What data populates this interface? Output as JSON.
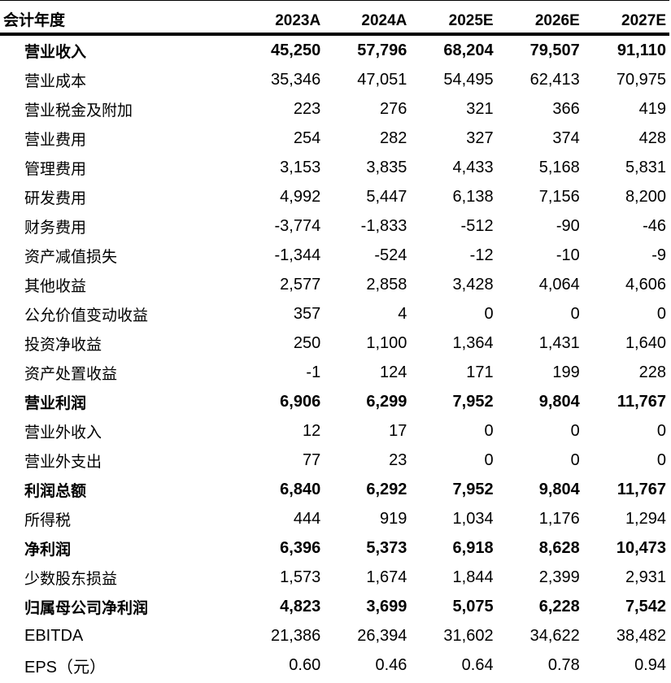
{
  "table": {
    "header": [
      "会计年度",
      "2023A",
      "2024A",
      "2025E",
      "2026E",
      "2027E"
    ],
    "rows": [
      {
        "label": "营业收入",
        "bold": true,
        "values": [
          "45,250",
          "57,796",
          "68,204",
          "79,507",
          "91,110"
        ]
      },
      {
        "label": "营业成本",
        "bold": false,
        "values": [
          "35,346",
          "47,051",
          "54,495",
          "62,413",
          "70,975"
        ]
      },
      {
        "label": "营业税金及附加",
        "bold": false,
        "values": [
          "223",
          "276",
          "321",
          "366",
          "419"
        ]
      },
      {
        "label": "营业费用",
        "bold": false,
        "values": [
          "254",
          "282",
          "327",
          "374",
          "428"
        ]
      },
      {
        "label": "管理费用",
        "bold": false,
        "values": [
          "3,153",
          "3,835",
          "4,433",
          "5,168",
          "5,831"
        ]
      },
      {
        "label": "研发费用",
        "bold": false,
        "values": [
          "4,992",
          "5,447",
          "6,138",
          "7,156",
          "8,200"
        ]
      },
      {
        "label": "财务费用",
        "bold": false,
        "values": [
          "-3,774",
          "-1,833",
          "-512",
          "-90",
          "-46"
        ]
      },
      {
        "label": "资产减值损失",
        "bold": false,
        "values": [
          "-1,344",
          "-524",
          "-12",
          "-10",
          "-9"
        ]
      },
      {
        "label": "其他收益",
        "bold": false,
        "values": [
          "2,577",
          "2,858",
          "3,428",
          "4,064",
          "4,606"
        ]
      },
      {
        "label": "公允价值变动收益",
        "bold": false,
        "values": [
          "357",
          "4",
          "0",
          "0",
          "0"
        ]
      },
      {
        "label": "投资净收益",
        "bold": false,
        "values": [
          "250",
          "1,100",
          "1,364",
          "1,431",
          "1,640"
        ]
      },
      {
        "label": "资产处置收益",
        "bold": false,
        "values": [
          "-1",
          "124",
          "171",
          "199",
          "228"
        ]
      },
      {
        "label": "营业利润",
        "bold": true,
        "values": [
          "6,906",
          "6,299",
          "7,952",
          "9,804",
          "11,767"
        ]
      },
      {
        "label": "营业外收入",
        "bold": false,
        "values": [
          "12",
          "17",
          "0",
          "0",
          "0"
        ]
      },
      {
        "label": "营业外支出",
        "bold": false,
        "values": [
          "77",
          "23",
          "0",
          "0",
          "0"
        ]
      },
      {
        "label": "利润总额",
        "bold": true,
        "values": [
          "6,840",
          "6,292",
          "7,952",
          "9,804",
          "11,767"
        ]
      },
      {
        "label": "所得税",
        "bold": false,
        "values": [
          "444",
          "919",
          "1,034",
          "1,176",
          "1,294"
        ]
      },
      {
        "label": "净利润",
        "bold": true,
        "values": [
          "6,396",
          "5,373",
          "6,918",
          "8,628",
          "10,473"
        ]
      },
      {
        "label": "少数股东损益",
        "bold": false,
        "values": [
          "1,573",
          "1,674",
          "1,844",
          "2,399",
          "2,931"
        ]
      },
      {
        "label": "归属母公司净利润",
        "bold": true,
        "values": [
          "4,823",
          "3,699",
          "5,075",
          "6,228",
          "7,542"
        ]
      },
      {
        "label": "EBITDA",
        "bold": false,
        "latin": true,
        "values": [
          "21,386",
          "26,394",
          "31,602",
          "34,622",
          "38,482"
        ]
      },
      {
        "label": "EPS（元）",
        "bold": false,
        "latin": true,
        "values": [
          "0.60",
          "0.46",
          "0.64",
          "0.78",
          "0.94"
        ]
      }
    ]
  }
}
